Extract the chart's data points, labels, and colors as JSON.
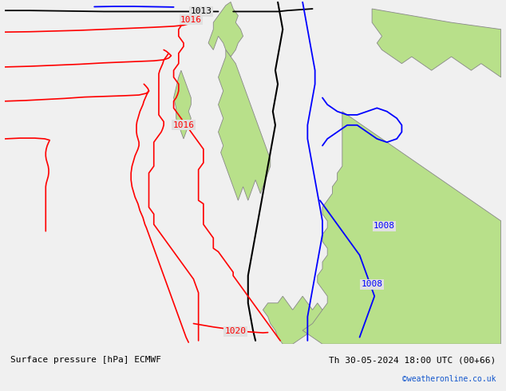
{
  "title_left": "Surface pressure [hPa] ECMWF",
  "title_right": "Th 30-05-2024 18:00 UTC (00+66)",
  "watermark": "©weatheronline.co.uk",
  "bg_color": "#e0e0e0",
  "land_color": "#b8e08a",
  "coast_color": "#888888",
  "fig_width": 6.34,
  "fig_height": 4.9,
  "dpi": 100,
  "font_size_labels": 8,
  "font_size_title": 8,
  "font_size_watermark": 7
}
